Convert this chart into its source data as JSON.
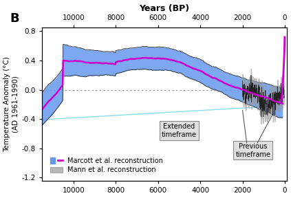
{
  "title": "Years (BP)",
  "ylabel": "Temperature Anomaly (°C)\n(AD 1961-1990)",
  "panel_label": "B",
  "xlim": [
    11500,
    -100
  ],
  "ylim": [
    -1.25,
    0.85
  ],
  "yticks": [
    -1.2,
    -0.8,
    -0.4,
    0.0,
    0.4,
    0.8
  ],
  "xticks": [
    10000,
    8000,
    6000,
    4000,
    2000,
    0
  ],
  "zero_line_color": "#888888",
  "marcott_color": "#cc00cc",
  "marcott_fill_color": "#6699ee",
  "marcott_fill_edge": "#222222",
  "mann_fill_color": "#999999",
  "mann_line_color": "#222222",
  "extended_curve_color": "#88ddee",
  "background_color": "#ffffff",
  "legend_marcott": "Marcott et al. reconstruction",
  "legend_mann": "Mann et al. reconstruction",
  "annotation_extended": "Extended\ntimeframe",
  "annotation_previous": "Previous\ntimeframe",
  "figsize": [
    4.23,
    2.88
  ],
  "dpi": 100
}
